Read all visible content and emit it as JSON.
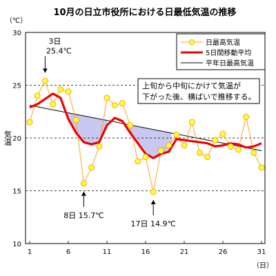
{
  "chart_data": {
    "type": "line",
    "title": "10月の日立市役所における日最低気温の推移",
    "unit_label": "（℃）",
    "ylabel": "気温",
    "xlabel": "（日）",
    "ylim": [
      10,
      30
    ],
    "yticks": [
      10,
      15,
      20,
      25,
      30
    ],
    "xlim": [
      1,
      31
    ],
    "xticks": [
      1,
      6,
      11,
      16,
      21,
      26,
      31
    ],
    "grid": "dashed horizontal at 15, 20, 25",
    "legend_position": "top-right",
    "series": [
      {
        "name": "日最高気温",
        "style": "line-with-markers",
        "color": "#f5a623",
        "marker_fill": "#ffff33",
        "x": [
          1,
          2,
          3,
          4,
          5,
          6,
          7,
          8,
          9,
          10,
          11,
          12,
          13,
          14,
          15,
          16,
          17,
          18,
          19,
          20,
          21,
          22,
          23,
          24,
          25,
          26,
          27,
          28,
          29,
          30,
          31
        ],
        "values": [
          21.5,
          24.0,
          25.4,
          23.2,
          24.6,
          24.4,
          21.7,
          15.7,
          17.2,
          19.2,
          23.8,
          23.1,
          23.3,
          21.2,
          17.8,
          18.2,
          14.9,
          18.8,
          19.3,
          20.3,
          19.3,
          21.5,
          18.6,
          18.2,
          19.8,
          20.4,
          19.2,
          18.9,
          22.0,
          18.6,
          17.2
        ]
      },
      {
        "name": "5日間移動平均",
        "style": "thick-line",
        "color": "#ee0000",
        "x": [
          1,
          2,
          3,
          4,
          5,
          6,
          7,
          8,
          9,
          10,
          11,
          12,
          13,
          14,
          15,
          16,
          17,
          18,
          19,
          20,
          21,
          22,
          23,
          24,
          25,
          26,
          27,
          28,
          29,
          30,
          31
        ],
        "values": [
          22.9,
          23.2,
          23.7,
          24.2,
          23.8,
          21.8,
          20.5,
          19.6,
          19.4,
          19.6,
          21.2,
          21.9,
          21.6,
          20.5,
          19.5,
          18.5,
          18.1,
          18.5,
          18.7,
          19.9,
          19.8,
          19.7,
          19.6,
          19.5,
          19.2,
          19.3,
          19.5,
          19.4,
          19.1,
          19.2,
          19.5
        ]
      },
      {
        "name": "平年日最高気温",
        "style": "thin-line",
        "color": "#000000",
        "x": [
          1,
          31
        ],
        "values": [
          23.1,
          18.8
        ]
      }
    ],
    "shading": {
      "description": "area between 平年日最高気温 and 5日間移動平均 where the average is below normal",
      "color": "#c8c8f0",
      "ranges": [
        [
          6,
          11
        ],
        [
          14,
          19.3
        ]
      ]
    },
    "annotations": [
      {
        "day_label": "3日",
        "value_label": "25.4℃",
        "x": 3,
        "y": 25.4,
        "arrow": "down"
      },
      {
        "day_label": "8日",
        "value_label": "15.7℃",
        "x": 8,
        "y": 15.7,
        "arrow": "up"
      },
      {
        "day_label": "17日",
        "value_label": "14.9℃",
        "x": 17,
        "y": 14.9,
        "arrow": "up"
      }
    ],
    "comment_lines": [
      "上旬から中旬にかけて気温が",
      "下がった後、横ばいで推移する。"
    ]
  }
}
